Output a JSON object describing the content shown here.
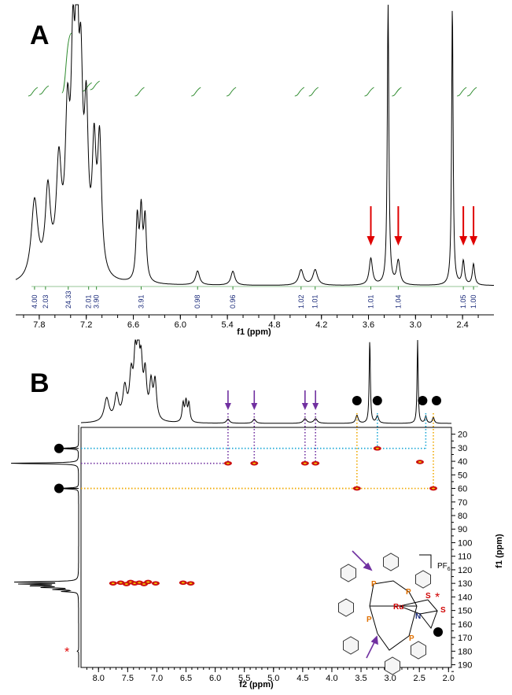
{
  "colors": {
    "spectrum": "#000000",
    "integral": "#2e8b2e",
    "integral_label": "#1a2a7a",
    "red_arrow": "#e00000",
    "purple": "#7030a0",
    "cyan": "#1aa7d6",
    "orange": "#f0a800",
    "crosspeak": "#cc1010",
    "crosspeak_core": "#f2d100",
    "phosphorus": "#e07000",
    "ruthenium": "#d00000",
    "nitrogen": "#1a2a7a"
  },
  "panel_a": {
    "letter": "A",
    "chart_data": {
      "type": "line",
      "xlabel": "f1 (ppm)",
      "xlim": [
        8.1,
        2.0
      ],
      "x_ticks": [
        "7.8",
        "7.2",
        "6.6",
        "6.0",
        "5.4",
        "4.8",
        "4.2",
        "3.6",
        "3.0",
        "2.4"
      ],
      "x_tick_values": [
        7.8,
        7.2,
        6.6,
        6.0,
        5.4,
        4.8,
        4.2,
        3.6,
        3.0,
        2.4
      ],
      "ylim": [
        0,
        1.0
      ],
      "peaks": [
        {
          "center": 7.86,
          "height": 0.28,
          "width": 0.05
        },
        {
          "center": 7.69,
          "height": 0.3,
          "width": 0.04
        },
        {
          "center": 7.55,
          "height": 0.38,
          "width": 0.04
        },
        {
          "center": 7.44,
          "height": 0.5,
          "width": 0.035
        },
        {
          "center": 7.37,
          "height": 0.68,
          "width": 0.03
        },
        {
          "center": 7.32,
          "height": 0.9,
          "width": 0.02
        },
        {
          "center": 7.27,
          "height": 0.62,
          "width": 0.03
        },
        {
          "center": 7.2,
          "height": 0.52,
          "width": 0.03
        },
        {
          "center": 7.1,
          "height": 0.42,
          "width": 0.03
        },
        {
          "center": 7.03,
          "height": 0.46,
          "width": 0.03
        },
        {
          "center": 6.55,
          "height": 0.22,
          "width": 0.02
        },
        {
          "center": 6.5,
          "height": 0.24,
          "width": 0.02
        },
        {
          "center": 6.45,
          "height": 0.22,
          "width": 0.02
        },
        {
          "center": 5.78,
          "height": 0.05,
          "width": 0.03
        },
        {
          "center": 5.33,
          "height": 0.05,
          "width": 0.03
        },
        {
          "center": 4.46,
          "height": 0.055,
          "width": 0.035
        },
        {
          "center": 4.28,
          "height": 0.055,
          "width": 0.035
        },
        {
          "center": 3.57,
          "height": 0.095,
          "width": 0.025
        },
        {
          "center": 3.35,
          "height": 1.0,
          "width": 0.012
        },
        {
          "center": 3.22,
          "height": 0.085,
          "width": 0.025
        },
        {
          "center": 2.53,
          "height": 1.0,
          "width": 0.011
        },
        {
          "center": 2.39,
          "height": 0.085,
          "width": 0.018
        },
        {
          "center": 2.26,
          "height": 0.075,
          "width": 0.018
        }
      ],
      "integrals": [
        {
          "position": 7.86,
          "value": "4.00"
        },
        {
          "position": 7.72,
          "value": "2.03"
        },
        {
          "position": 7.43,
          "value": "24.33"
        },
        {
          "position": 7.17,
          "value": "2.01"
        },
        {
          "position": 7.07,
          "value": "3.90"
        },
        {
          "position": 6.5,
          "value": "3.91"
        },
        {
          "position": 5.78,
          "value": "0.98"
        },
        {
          "position": 5.33,
          "value": "0.96"
        },
        {
          "position": 4.46,
          "value": "1.02"
        },
        {
          "position": 4.28,
          "value": "1.01"
        },
        {
          "position": 3.57,
          "value": "1.01"
        },
        {
          "position": 3.22,
          "value": "1.04"
        },
        {
          "position": 2.39,
          "value": "1.05"
        },
        {
          "position": 2.26,
          "value": "1.00"
        }
      ],
      "red_arrows_at": [
        3.57,
        3.22,
        2.39,
        2.26
      ]
    }
  },
  "panel_b": {
    "letter": "B",
    "chart_data": {
      "type": "scatter",
      "xlabel": "f2 (ppm)",
      "ylabel": "f1 (ppm)",
      "xlim": [
        8.3,
        1.95
      ],
      "ylim": [
        15,
        192
      ],
      "x_ticks": [
        "8.0",
        "7.5",
        "7.0",
        "6.5",
        "6.0",
        "5.5",
        "5.0",
        "4.5",
        "4.0",
        "3.5",
        "3.0",
        "2.5",
        "2.0"
      ],
      "x_tick_values": [
        8.0,
        7.5,
        7.0,
        6.5,
        6.0,
        5.5,
        5.0,
        4.5,
        4.0,
        3.5,
        3.0,
        2.5,
        2.0
      ],
      "y_ticks": [
        "20",
        "30",
        "40",
        "50",
        "60",
        "70",
        "80",
        "90",
        "100",
        "110",
        "120",
        "130",
        "140",
        "150",
        "160",
        "170",
        "180",
        "190"
      ],
      "y_tick_values": [
        20,
        30,
        40,
        50,
        60,
        70,
        80,
        90,
        100,
        110,
        120,
        130,
        140,
        150,
        160,
        170,
        180,
        190
      ],
      "cross_peaks": [
        {
          "f2": 5.78,
          "f1": 41.5
        },
        {
          "f2": 5.33,
          "f1": 41.5
        },
        {
          "f2": 4.46,
          "f1": 41.5
        },
        {
          "f2": 4.28,
          "f1": 41.5
        },
        {
          "f2": 3.22,
          "f1": 30.5
        },
        {
          "f2": 2.49,
          "f1": 40.5
        },
        {
          "f2": 3.57,
          "f1": 60
        },
        {
          "f2": 2.26,
          "f1": 60
        },
        {
          "f2": 7.75,
          "f1": 130
        },
        {
          "f2": 7.62,
          "f1": 129.5
        },
        {
          "f2": 7.52,
          "f1": 130.5
        },
        {
          "f2": 7.45,
          "f1": 129
        },
        {
          "f2": 7.38,
          "f1": 130
        },
        {
          "f2": 7.3,
          "f1": 129.5
        },
        {
          "f2": 7.22,
          "f1": 130.5
        },
        {
          "f2": 7.15,
          "f1": 129
        },
        {
          "f2": 7.02,
          "f1": 130
        },
        {
          "f2": 6.55,
          "f1": 129.5
        },
        {
          "f2": 6.42,
          "f1": 130
        }
      ],
      "correlation_lines": [
        {
          "color": "cyan",
          "from_f2": 3.22,
          "to_f2": 8.3,
          "f1": 30.5
        },
        {
          "color": "cyan",
          "from_f2": 2.39,
          "to_f2": 8.3,
          "f1": 30.5
        },
        {
          "color": "purple",
          "from_f2": 5.78,
          "to_f2": 8.3,
          "f1": 41.5
        },
        {
          "color": "orange",
          "from_f2": 3.57,
          "to_f2": 8.3,
          "f1": 60
        },
        {
          "color": "orange",
          "from_f2": 2.26,
          "to_f2": 8.3,
          "f1": 60
        }
      ],
      "purple_arrows_at": [
        5.78,
        5.33,
        4.46,
        4.28
      ],
      "black_dots_at": [
        3.57,
        3.22,
        2.39,
        2.26
      ],
      "f1_projection_dots": [
        30.5,
        60
      ],
      "f1_projection_star": 180,
      "projection_peaks_f1": [
        {
          "center": 41.5,
          "height": 0.95
        },
        {
          "center": 30.5,
          "height": 0.25
        },
        {
          "center": 60,
          "height": 0.28
        },
        {
          "center": 129,
          "height": 0.8
        },
        {
          "center": 130.5,
          "height": 0.7
        },
        {
          "center": 131.8,
          "height": 0.62
        },
        {
          "center": 133,
          "height": 0.45
        },
        {
          "center": 134.5,
          "height": 0.3
        },
        {
          "center": 136,
          "height": 0.2
        },
        {
          "center": 180,
          "height": 0.02
        }
      ]
    },
    "structure": {
      "counterion": "PF",
      "counterion_sub": "6",
      "p_label": "P",
      "ru_label": "Ru",
      "s_label": "S",
      "n_label": "N",
      "star": "*"
    }
  }
}
